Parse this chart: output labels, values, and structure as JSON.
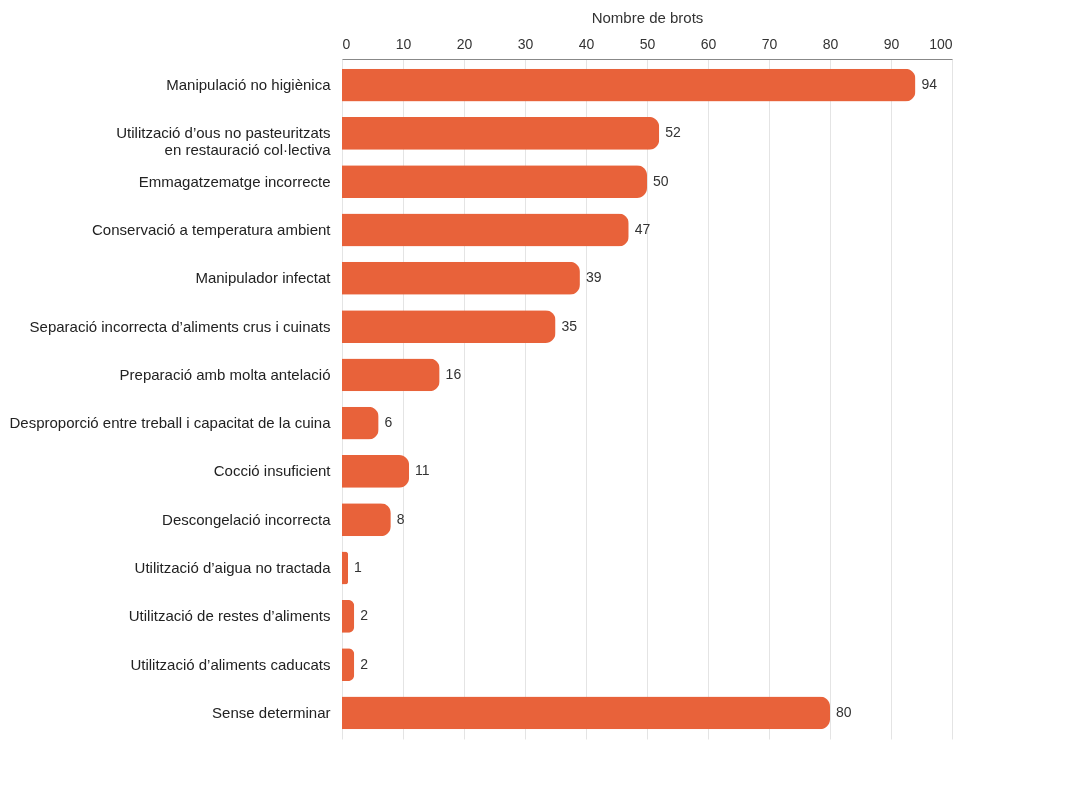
{
  "chart_data": {
    "type": "bar",
    "orientation": "horizontal",
    "xlabel": "Nombre de brots",
    "categories": [
      "Manipulació no higiènica",
      "Utilització d’ous no pasteuritzats\nen restauració col·lectiva",
      "Emmagatzematge incorrecte",
      "Conservació a temperatura ambient",
      "Manipulador infectat",
      "Separació incorrecta d’aliments crus i cuinats",
      "Preparació amb molta antelació",
      "Desproporció entre treball i capacitat de la cuina",
      "Cocció insuficient",
      "Descongelació incorrecta",
      "Utilització d’aigua no tractada",
      "Utilització de restes d’aliments",
      "Utilització d’aliments caducats",
      "Sense determinar"
    ],
    "values": [
      94,
      52,
      50,
      47,
      39,
      35,
      16,
      6,
      11,
      8,
      1,
      2,
      2,
      80
    ],
    "color": "#e8623a",
    "xlim": [
      0,
      100
    ],
    "xticks": [
      0,
      10,
      20,
      30,
      40,
      50,
      60,
      70,
      80,
      90,
      100
    ],
    "grid": "x",
    "data_labels": true
  }
}
